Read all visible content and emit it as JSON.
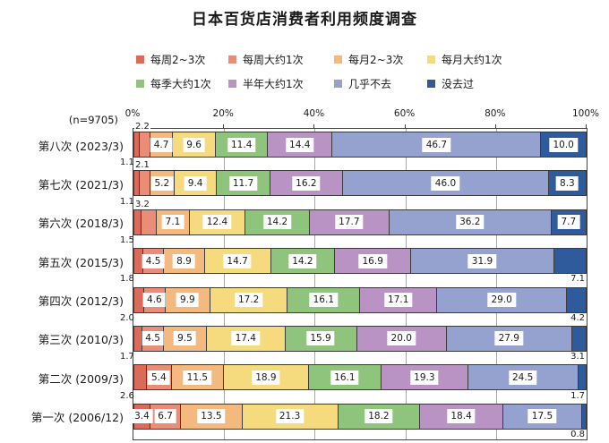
{
  "chart_data": {
    "type": "bar",
    "stacked": true,
    "orientation": "horizontal",
    "title": "日本百货店消费者利用频度调查",
    "sample_size_label": "(n=9705)",
    "x_axis": {
      "ticks": [
        "0%",
        "20%",
        "40%",
        "60%",
        "80%",
        "100%"
      ],
      "min": 0,
      "max": 100,
      "grid": true,
      "position": "top"
    },
    "legend_position": "top",
    "value_decimals": 1,
    "categories": [
      "第八次 (2023/3)",
      "第七次 (2021/3)",
      "第六次 (2018/3)",
      "第五次 (2015/3)",
      "第四次 (2012/3)",
      "第三次 (2010/3)",
      "第二次 (2009/3)",
      "第一次 (2006/12)"
    ],
    "series": [
      {
        "name": "每周2~3次",
        "color": "#db6a5a",
        "values": [
          1.1,
          1.1,
          1.5,
          1.8,
          2.0,
          1.7,
          2.6,
          3.4
        ]
      },
      {
        "name": "每周大约1次",
        "color": "#ea8d78",
        "values": [
          2.2,
          2.1,
          3.2,
          4.5,
          4.6,
          4.5,
          5.4,
          6.7
        ]
      },
      {
        "name": "每月2~3次",
        "color": "#f3b97e",
        "values": [
          4.7,
          5.2,
          7.1,
          8.9,
          9.9,
          9.5,
          11.5,
          13.5
        ]
      },
      {
        "name": "每月大约1次",
        "color": "#f6da7e",
        "values": [
          9.6,
          9.4,
          12.4,
          14.7,
          17.2,
          17.4,
          18.9,
          21.3
        ]
      },
      {
        "name": "每季大约1次",
        "color": "#8fc47d",
        "values": [
          11.4,
          11.7,
          14.2,
          14.2,
          16.1,
          15.9,
          16.1,
          18.2
        ]
      },
      {
        "name": "半年大约1次",
        "color": "#b893c3",
        "values": [
          14.4,
          16.2,
          17.7,
          16.9,
          17.1,
          20.0,
          19.3,
          18.4
        ]
      },
      {
        "name": "几乎不去",
        "color": "#95a1ce",
        "values": [
          46.7,
          46.0,
          36.2,
          31.9,
          29.0,
          27.9,
          24.5,
          17.5
        ]
      },
      {
        "name": "没去过",
        "color": "#2f5b9d",
        "values": [
          10.0,
          8.3,
          7.7,
          7.1,
          4.2,
          3.1,
          1.7,
          0.8
        ]
      }
    ],
    "rows": [
      {
        "placements": [
          "below-left",
          "above-left",
          "in",
          "in",
          "in",
          "in",
          "in",
          "in"
        ]
      },
      {
        "placements": [
          "below-left",
          "above-left",
          "in",
          "in",
          "in",
          "in",
          "in",
          "in"
        ]
      },
      {
        "placements": [
          "below-left",
          "above-left",
          "in",
          "in",
          "in",
          "in",
          "in",
          "in"
        ]
      },
      {
        "placements": [
          "below-left",
          "in",
          "in",
          "in",
          "in",
          "in",
          "in",
          "below-right"
        ]
      },
      {
        "placements": [
          "below-left",
          "in",
          "in",
          "in",
          "in",
          "in",
          "in",
          "below-right"
        ]
      },
      {
        "placements": [
          "below-left",
          "in",
          "in",
          "in",
          "in",
          "in",
          "in",
          "below-right"
        ]
      },
      {
        "placements": [
          "below-left",
          "in",
          "in",
          "in",
          "in",
          "in",
          "in",
          "below-right"
        ]
      },
      {
        "placements": [
          "in",
          "in",
          "in",
          "in",
          "in",
          "in",
          "in",
          "below-right"
        ]
      }
    ]
  }
}
